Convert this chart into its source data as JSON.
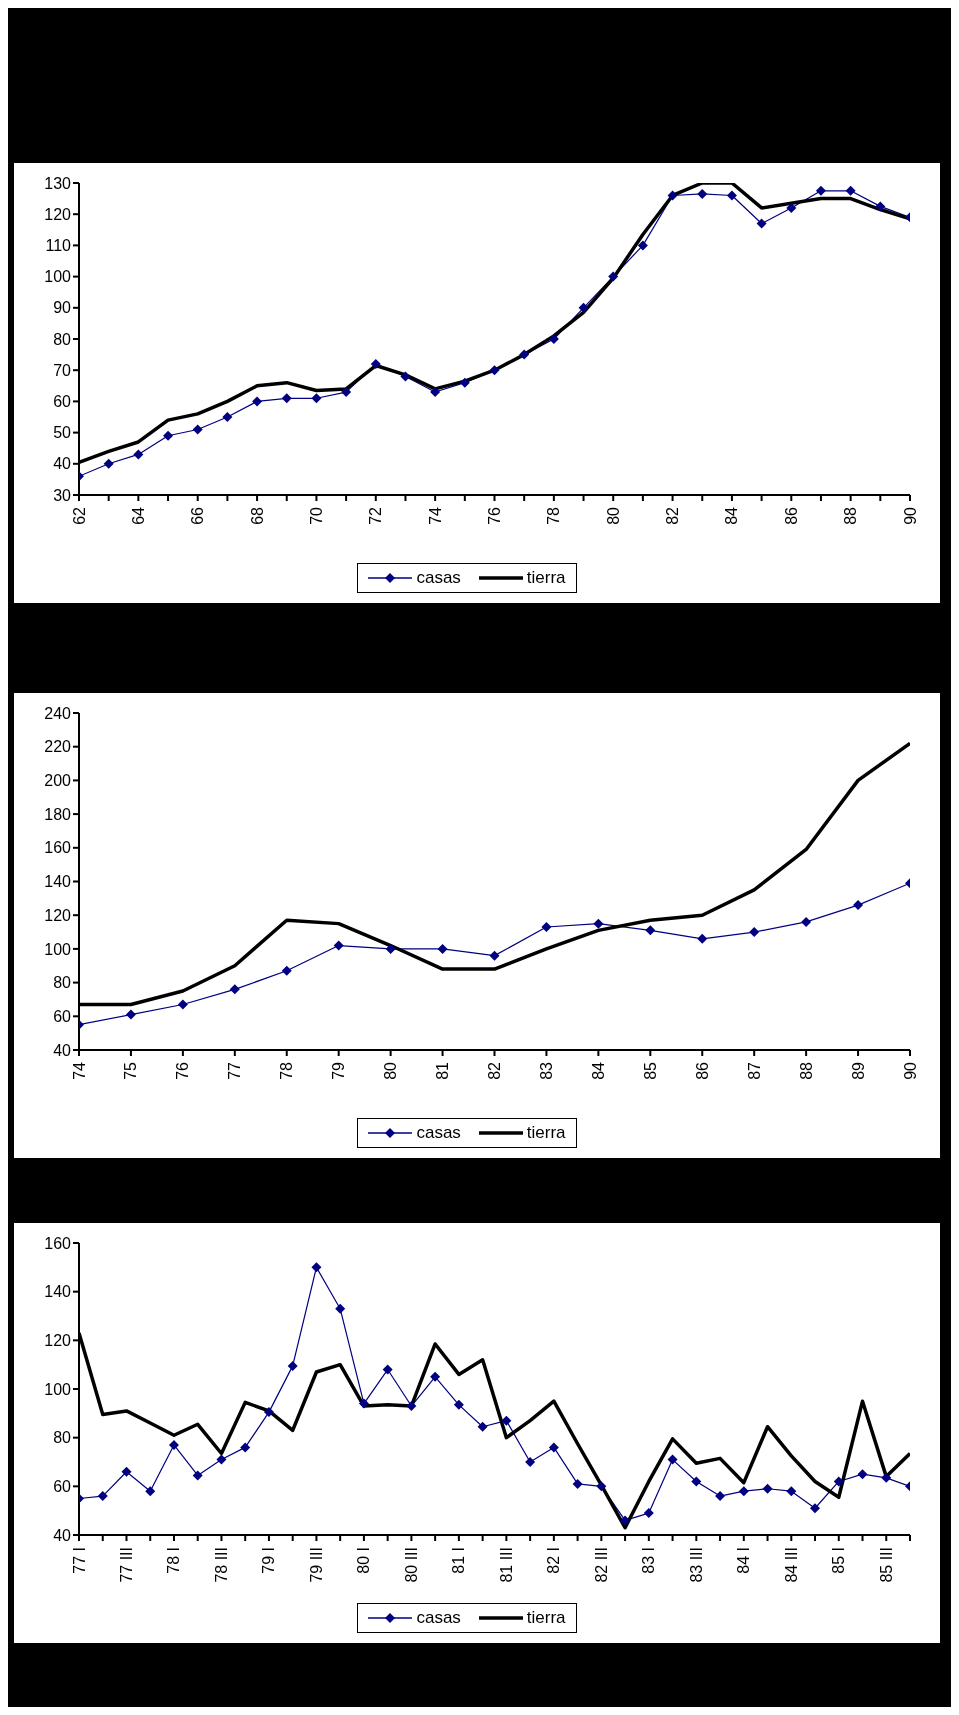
{
  "chart_data": [
    {
      "type": "line",
      "x": [
        62,
        63,
        64,
        65,
        66,
        67,
        68,
        69,
        70,
        71,
        72,
        73,
        74,
        75,
        76,
        77,
        78,
        79,
        80,
        81,
        82,
        83,
        84,
        85,
        86,
        87,
        88,
        89,
        90
      ],
      "xlim": [
        62,
        90
      ],
      "xticks": [
        62,
        {
          "value": 63,
          "label": null
        },
        64,
        {
          "value": 65,
          "label": null
        },
        66,
        {
          "value": 67,
          "label": null
        },
        68,
        {
          "value": 69,
          "label": null
        },
        70,
        {
          "value": 71,
          "label": null
        },
        72,
        {
          "value": 73,
          "label": null
        },
        74,
        {
          "value": 75,
          "label": null
        },
        76,
        {
          "value": 77,
          "label": null
        },
        78,
        {
          "value": 79,
          "label": null
        },
        80,
        {
          "value": 81,
          "label": null
        },
        82,
        {
          "value": 83,
          "label": null
        },
        84,
        {
          "value": 85,
          "label": null
        },
        86,
        {
          "value": 87,
          "label": null
        },
        88,
        {
          "value": 89,
          "label": null
        },
        90
      ],
      "ylim": [
        30,
        130
      ],
      "yticks": [
        30,
        40,
        50,
        60,
        70,
        80,
        90,
        100,
        110,
        120,
        130
      ],
      "grid": false,
      "legend": "bottom",
      "series": [
        {
          "name": "casas",
          "color": "#000080",
          "marker": "diamond",
          "values": [
            36,
            40,
            43,
            49,
            51,
            55,
            60,
            61,
            61,
            63,
            72,
            68,
            63,
            66,
            70,
            75,
            80,
            90,
            100,
            110,
            126,
            126.5,
            126,
            117,
            122,
            127.5,
            127.5,
            122.5,
            119
          ]
        },
        {
          "name": "tierra",
          "color": "#000000",
          "marker": "none",
          "values": [
            40.5,
            44,
            47,
            54,
            56,
            60,
            65,
            66,
            63.5,
            64,
            71.5,
            68.5,
            64,
            66.5,
            70,
            75,
            81,
            88.5,
            99.5,
            113.5,
            126,
            130,
            130,
            122,
            123.5,
            125,
            125,
            121.5,
            118.5
          ]
        }
      ]
    },
    {
      "type": "line",
      "x": [
        74,
        75,
        76,
        77,
        78,
        79,
        80,
        81,
        82,
        83,
        84,
        85,
        86,
        87,
        88,
        89,
        90
      ],
      "xlim": [
        74,
        90
      ],
      "xticks": [
        74,
        75,
        76,
        77,
        78,
        79,
        80,
        81,
        82,
        83,
        84,
        85,
        86,
        87,
        88,
        89,
        90
      ],
      "ylim": [
        40,
        240
      ],
      "yticks": [
        40,
        60,
        80,
        100,
        120,
        140,
        160,
        180,
        200,
        220,
        240
      ],
      "grid": false,
      "legend": "bottom",
      "series": [
        {
          "name": "casas",
          "color": "#000080",
          "marker": "diamond",
          "values": [
            55,
            61,
            67,
            76,
            87,
            102,
            100,
            100,
            96,
            113,
            115,
            111,
            106,
            110,
            116,
            126,
            139
          ]
        },
        {
          "name": "tierra",
          "color": "#000000",
          "marker": "none",
          "values": [
            67,
            67,
            75,
            90,
            117,
            115,
            102,
            88,
            88,
            100,
            111,
            117,
            120,
            135,
            159,
            200,
            222
          ]
        }
      ]
    },
    {
      "type": "line",
      "categories": [
        "77 I",
        null,
        "77 III",
        null,
        "78 I",
        null,
        "78 III",
        null,
        "79 I",
        null,
        "79 III",
        null,
        "80 I",
        null,
        "80 III",
        null,
        "81 I",
        null,
        "81 III",
        null,
        "82 I",
        null,
        "82 III",
        null,
        "83 I",
        null,
        "83 III",
        null,
        "84 I",
        null,
        "84 III",
        null,
        "85 I",
        null,
        "85 III",
        null
      ],
      "ylim": [
        40,
        160
      ],
      "yticks": [
        40,
        60,
        80,
        100,
        120,
        140,
        160
      ],
      "grid": false,
      "legend": "bottom",
      "series": [
        {
          "name": "casas",
          "color": "#000080",
          "marker": "diamond",
          "values": [
            55,
            56,
            66,
            58,
            77,
            64.5,
            71,
            76,
            90.5,
            109.5,
            150,
            133,
            94,
            108,
            93,
            105,
            93.5,
            84.5,
            87,
            70,
            76,
            61,
            60,
            46,
            49,
            71,
            62,
            56,
            58,
            59,
            58,
            51,
            62,
            65,
            63.5,
            60
          ]
        },
        {
          "name": "tierra",
          "color": "#000000",
          "marker": "none",
          "values": [
            123,
            89.5,
            91,
            86,
            81,
            85.5,
            73.5,
            94.5,
            91,
            83,
            107,
            110,
            93,
            93.5,
            93,
            118.5,
            106,
            112,
            80,
            87,
            95,
            77.5,
            60.5,
            43,
            62,
            79.5,
            69.5,
            71.5,
            61.5,
            84.5,
            72.5,
            62,
            55.5,
            95,
            64,
            73.5
          ]
        }
      ]
    }
  ]
}
